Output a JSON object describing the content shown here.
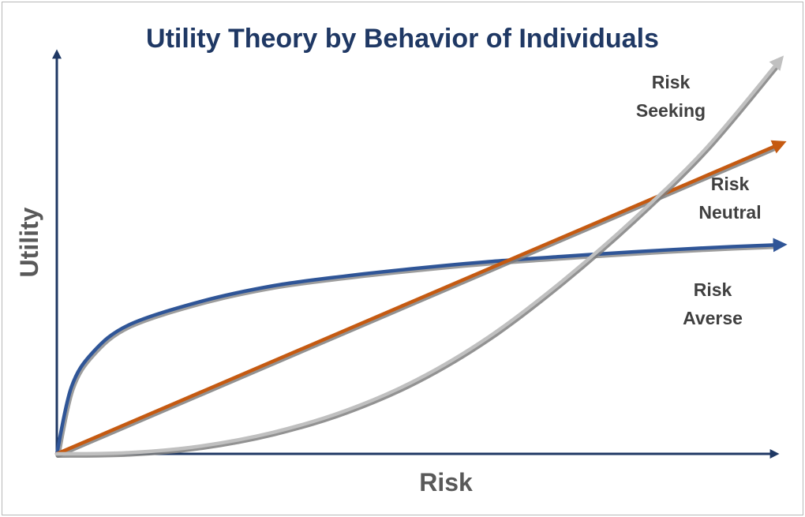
{
  "chart_data": {
    "type": "line",
    "title": "Utility Theory by Behavior of Individuals",
    "xlabel": "Risk",
    "ylabel": "Utility",
    "grid": false,
    "xlim": [
      0,
      1
    ],
    "ylim": [
      0,
      1
    ],
    "series": [
      {
        "name": "Risk Averse",
        "label_lines": [
          "Risk",
          "Averse"
        ],
        "color": "#2f5597",
        "shadow": "#8c8c8c",
        "x": [
          0,
          0.02,
          0.05,
          0.1,
          0.2,
          0.3,
          0.4,
          0.5,
          0.6,
          0.7,
          0.8,
          0.9,
          1.0
        ],
        "values": [
          0,
          0.17,
          0.26,
          0.33,
          0.39,
          0.43,
          0.455,
          0.475,
          0.492,
          0.505,
          0.517,
          0.527,
          0.535
        ]
      },
      {
        "name": "Risk Neutral",
        "label_lines": [
          "Risk",
          "Neutral"
        ],
        "color": "#c55a11",
        "shadow": "#7f7f7f",
        "x": [
          0,
          1.0
        ],
        "values": [
          0,
          0.79
        ]
      },
      {
        "name": "Risk Seeking",
        "label_lines": [
          "Risk",
          "Seeking"
        ],
        "color": "#c0c0c0",
        "shadow": "#7f7f7f",
        "x": [
          0,
          0.1,
          0.2,
          0.3,
          0.4,
          0.5,
          0.6,
          0.7,
          0.8,
          0.9,
          1.0
        ],
        "values": [
          0,
          0.003,
          0.02,
          0.055,
          0.11,
          0.19,
          0.3,
          0.44,
          0.6,
          0.78,
          1.0
        ]
      }
    ],
    "colors": {
      "title": "#1f3864",
      "axis": "#1f3864",
      "axis_label": "#595959",
      "curve_label": "#404040"
    }
  }
}
